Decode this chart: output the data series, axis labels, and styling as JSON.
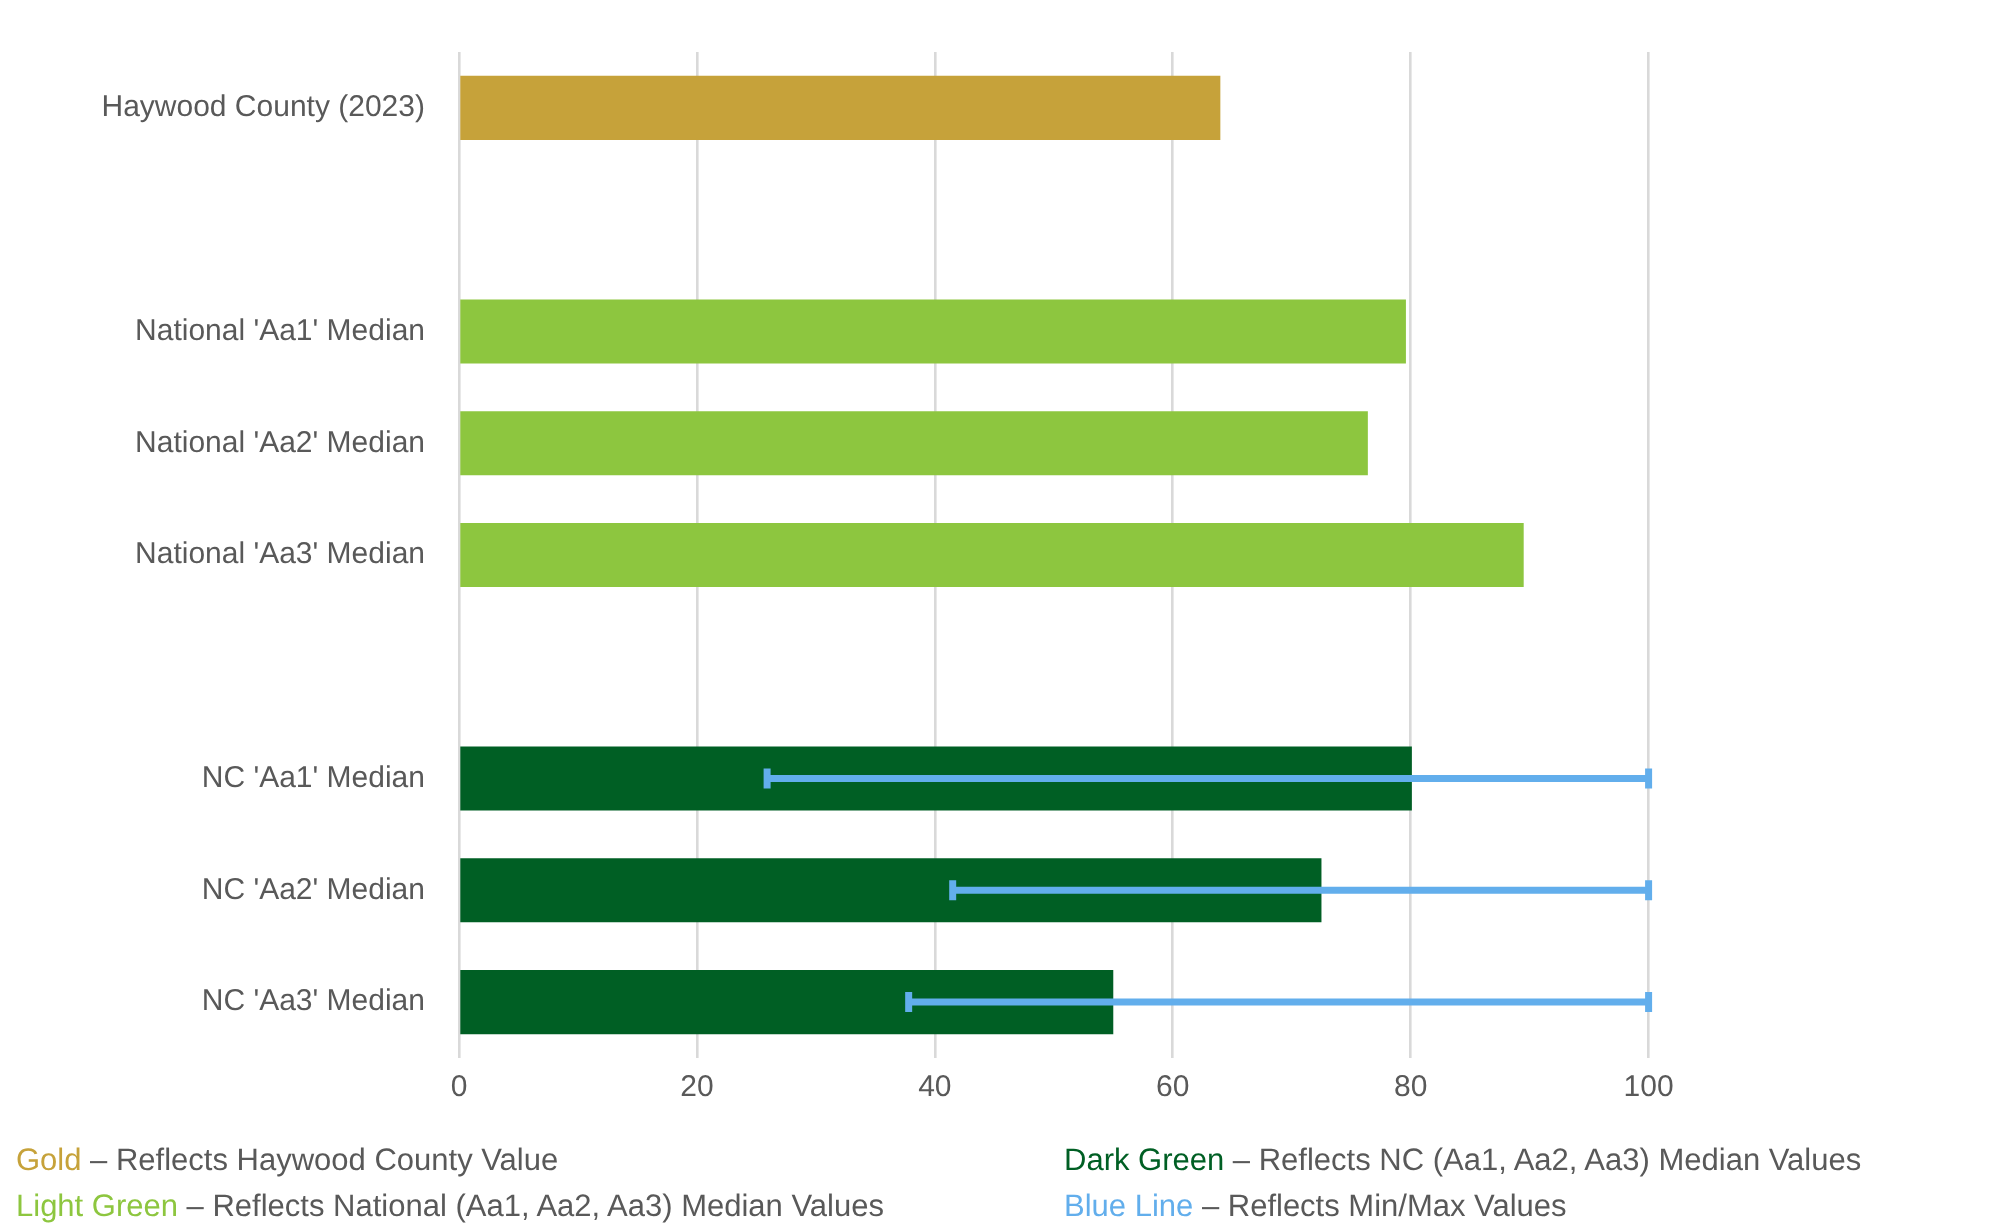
{
  "chart_data": {
    "type": "bar",
    "orientation": "horizontal",
    "categories": [
      "Haywood County (2023)",
      null,
      "National 'Aa1' Median",
      "National 'Aa2' Median",
      "National 'Aa3' Median",
      null,
      "NC 'Aa1' Median",
      "NC 'Aa2' Median",
      "NC 'Aa3' Median"
    ],
    "values": [
      64.0,
      null,
      79.6,
      76.4,
      89.5,
      null,
      80.1,
      72.5,
      55.0
    ],
    "colors": [
      "#c6a23a",
      null,
      "#8dc63f",
      "#8dc63f",
      "#8dc63f",
      null,
      "#005f24",
      "#005f24",
      "#005f24"
    ],
    "errors": [
      null,
      null,
      null,
      null,
      null,
      null,
      [
        25.9,
        100
      ],
      [
        41.5,
        100
      ],
      [
        37.8,
        100
      ]
    ],
    "xlim": [
      0,
      100
    ],
    "xticks": [
      0,
      20,
      40,
      60,
      80,
      100
    ],
    "grid": "x",
    "annotations": [
      "Gold – Reflects Haywood County Value",
      "Light Green – Reflects National (Aa1, Aa2, Aa3) Median Values",
      "Dark Green – Reflects NC (Aa1, Aa2, Aa3) Median Values",
      "Blue Line – Reflects Min/Max Values"
    ]
  }
}
